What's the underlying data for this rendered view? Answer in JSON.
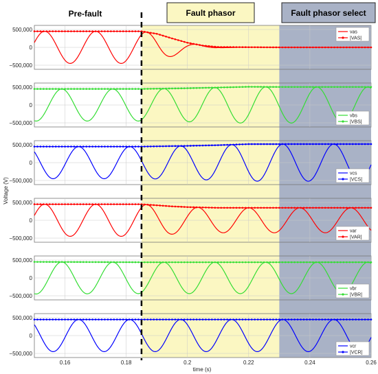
{
  "chart_data": {
    "type": "line",
    "ylabel": "Voltage (V)",
    "xlabel": "time (s)",
    "xlim": [
      0.15,
      0.26
    ],
    "ylim": [
      -500000,
      500000
    ],
    "x_ticks": [
      "0.16",
      "0.18",
      "0.2",
      "0.22",
      "0.24",
      "0.26"
    ],
    "y_ticks": [
      "500,000",
      "0",
      "−500,000"
    ],
    "fault_time": 0.185,
    "select_start": 0.23,
    "grid": true,
    "legend_position": "right",
    "regions": [
      {
        "title": "Pre-fault",
        "x_range": [
          0.15,
          0.185
        ],
        "color": "#ffffff"
      },
      {
        "title": "Fault phasor",
        "x_range": [
          0.185,
          0.23
        ],
        "color": "#fbf7c2"
      },
      {
        "title": "Fault phasor select",
        "x_range": [
          0.23,
          0.26
        ],
        "color": "#a9b2c6"
      }
    ],
    "panels": [
      {
        "color": "#ff0000",
        "wave_legend": "vas",
        "mag_legend": "|VAS|",
        "wave_amplitude_pre": 450000,
        "wave_behavior": "decays to zero",
        "magnitude": {
          "x": [
            0.15,
            0.185,
            0.19,
            0.195,
            0.2,
            0.205,
            0.21,
            0.23,
            0.26
          ],
          "y": [
            450000,
            450000,
            380000,
            250000,
            130000,
            50000,
            10000,
            0,
            0
          ]
        }
      },
      {
        "color": "#33dd33",
        "wave_legend": "vbs",
        "mag_legend": "|VBS|",
        "wave_amplitude_pre": 450000,
        "wave_behavior": "amplitude rises slightly after fault",
        "magnitude": {
          "x": [
            0.15,
            0.185,
            0.2,
            0.21,
            0.22,
            0.23,
            0.26
          ],
          "y": [
            450000,
            450000,
            470000,
            490000,
            510000,
            505000,
            505000
          ]
        }
      },
      {
        "color": "#0000ff",
        "wave_legend": "vcs",
        "mag_legend": "|VCS|",
        "wave_amplitude_pre": 450000,
        "wave_behavior": "amplitude rises slightly after fault",
        "magnitude": {
          "x": [
            0.15,
            0.185,
            0.2,
            0.21,
            0.22,
            0.23,
            0.26
          ],
          "y": [
            450000,
            450000,
            470000,
            490000,
            520000,
            520000,
            520000
          ]
        }
      },
      {
        "color": "#ff0000",
        "wave_legend": "var",
        "mag_legend": "|VAR|",
        "wave_amplitude_pre": 450000,
        "wave_behavior": "amplitude drops after fault",
        "magnitude": {
          "x": [
            0.15,
            0.185,
            0.19,
            0.195,
            0.2,
            0.205,
            0.21,
            0.23,
            0.26
          ],
          "y": [
            450000,
            450000,
            420000,
            390000,
            370000,
            360000,
            350000,
            350000,
            350000
          ]
        }
      },
      {
        "color": "#33dd33",
        "wave_legend": "vbr",
        "mag_legend": "|VBR|",
        "wave_amplitude_pre": 450000,
        "wave_behavior": "nearly constant",
        "magnitude": {
          "x": [
            0.15,
            0.185,
            0.26
          ],
          "y": [
            450000,
            440000,
            440000
          ]
        }
      },
      {
        "color": "#0000ff",
        "wave_legend": "vcr",
        "mag_legend": "|VCR|",
        "wave_amplitude_pre": 450000,
        "wave_behavior": "nearly constant",
        "magnitude": {
          "x": [
            0.15,
            0.185,
            0.26
          ],
          "y": [
            450000,
            450000,
            450000
          ]
        }
      }
    ]
  }
}
